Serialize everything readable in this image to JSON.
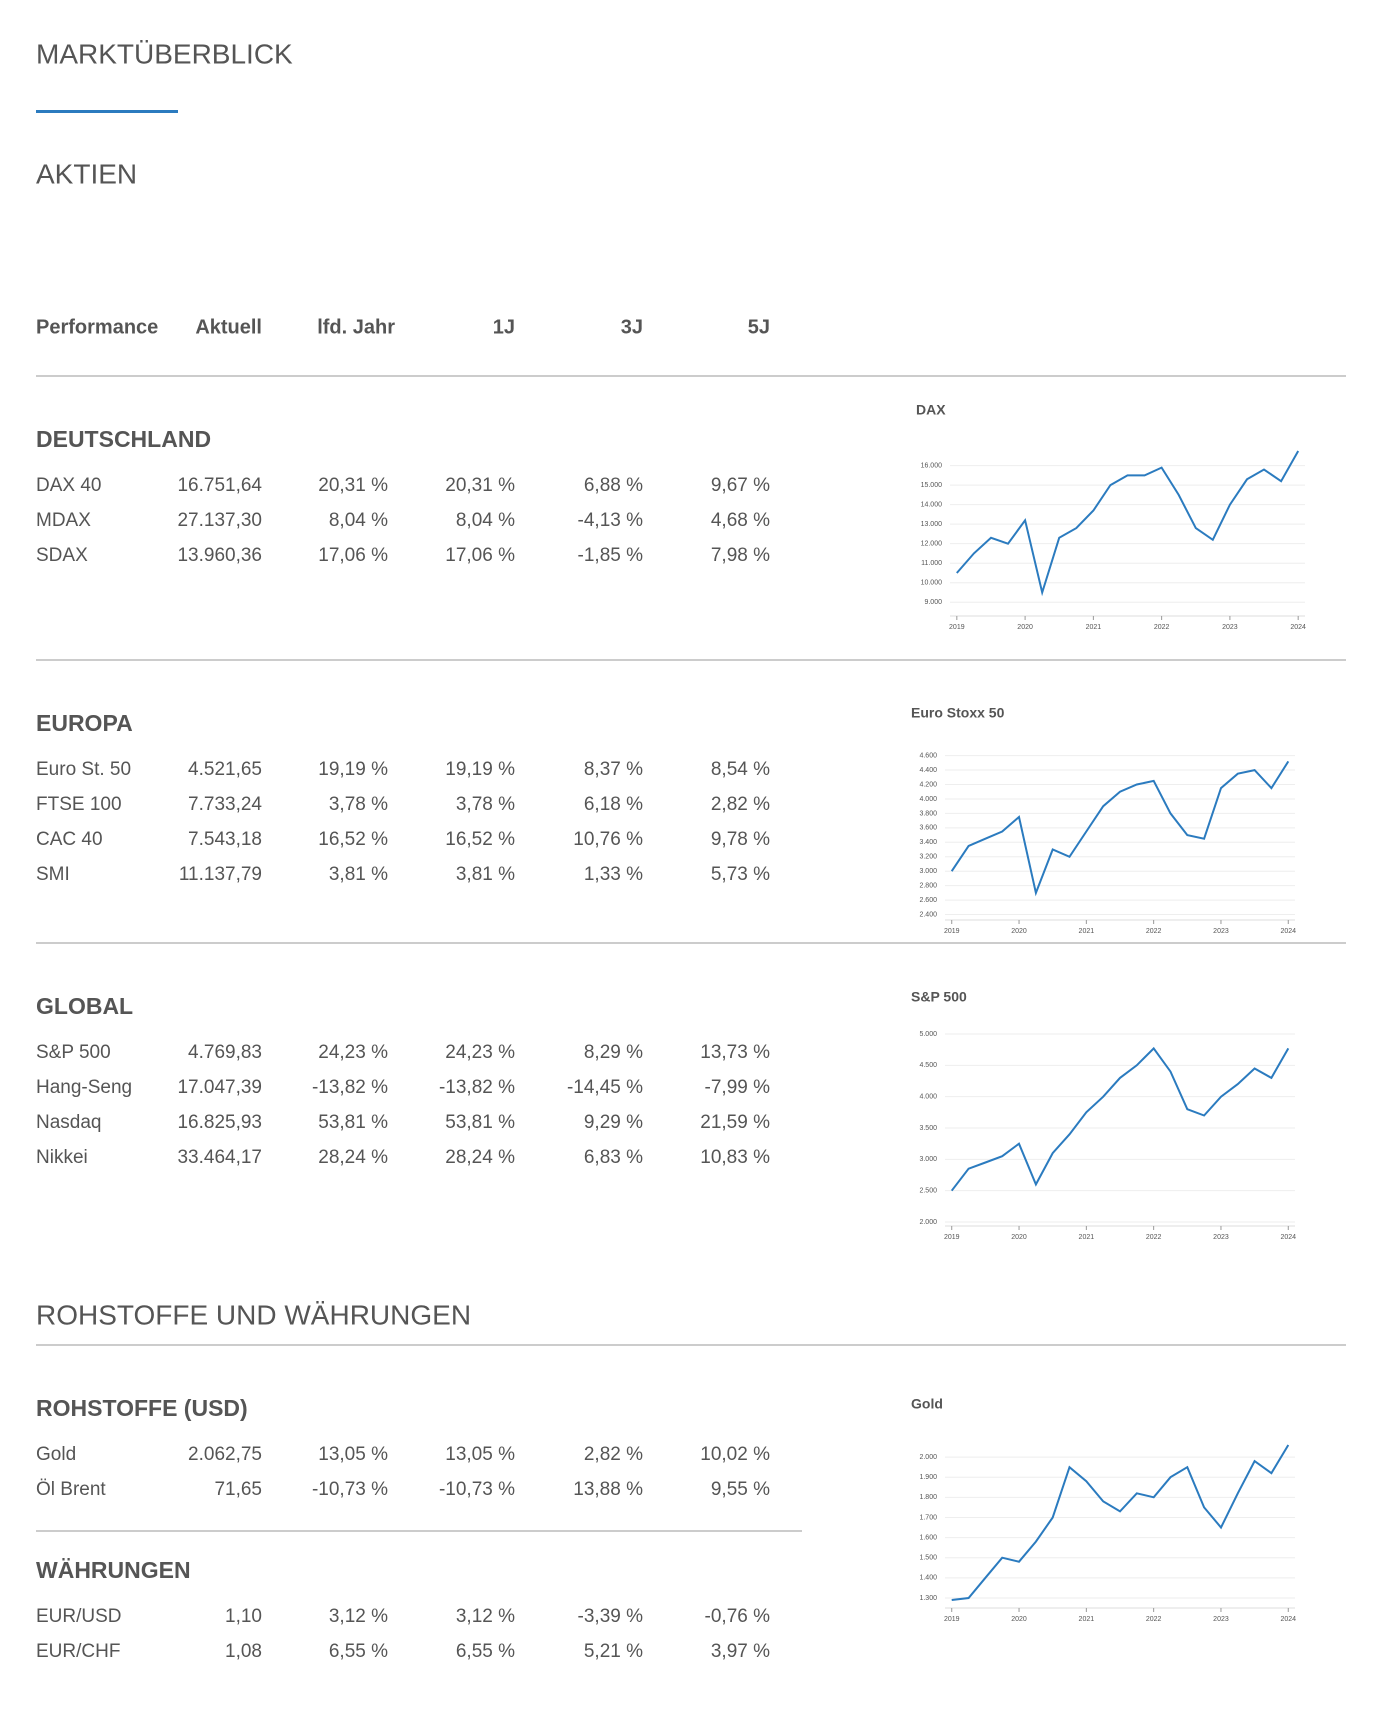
{
  "title": "MARKTÜBERBLICK",
  "sections": [
    {
      "title": "AKTIEN",
      "columns": [
        "Performance",
        "Aktuell",
        "lfd. Jahr",
        "1J",
        "3J",
        "5J"
      ],
      "groups": [
        {
          "name": "DEUTSCHLAND",
          "rows": [
            [
              "DAX 40",
              "16.751,64",
              "20,31 %",
              "20,31 %",
              "6,88 %",
              "9,67 %"
            ],
            [
              "MDAX",
              "27.137,30",
              "8,04 %",
              "8,04 %",
              "-4,13 %",
              "4,68 %"
            ],
            [
              "SDAX",
              "13.960,36",
              "17,06 %",
              "17,06 %",
              "-1,85 %",
              "7,98 %"
            ]
          ]
        },
        {
          "name": "EUROPA",
          "rows": [
            [
              "Euro St. 50",
              "4.521,65",
              "19,19 %",
              "19,19 %",
              "8,37 %",
              "8,54 %"
            ],
            [
              "FTSE 100",
              "7.733,24",
              "3,78 %",
              "3,78 %",
              "6,18 %",
              "2,82 %"
            ],
            [
              "CAC 40",
              "7.543,18",
              "16,52 %",
              "16,52 %",
              "10,76 %",
              "9,78 %"
            ],
            [
              "SMI",
              "11.137,79",
              "3,81 %",
              "3,81 %",
              "1,33 %",
              "5,73 %"
            ]
          ]
        },
        {
          "name": "GLOBAL",
          "rows": [
            [
              "S&P 500",
              "4.769,83",
              "24,23 %",
              "24,23 %",
              "8,29 %",
              "13,73 %"
            ],
            [
              "Hang-Seng",
              "17.047,39",
              "-13,82 %",
              "-13,82 %",
              "-14,45 %",
              "-7,99 %"
            ],
            [
              "Nasdaq",
              "16.825,93",
              "53,81 %",
              "53,81 %",
              "9,29 %",
              "21,59 %"
            ],
            [
              "Nikkei",
              "33.464,17",
              "28,24 %",
              "28,24 %",
              "6,83 %",
              "10,83 %"
            ]
          ]
        }
      ]
    },
    {
      "title": "ROHSTOFFE UND WÄHRUNGEN",
      "groups": [
        {
          "name": "ROHSTOFFE (USD)",
          "rows": [
            [
              "Gold",
              "2.062,75",
              "13,05 %",
              "13,05 %",
              "2,82 %",
              "10,02 %"
            ],
            [
              "Öl Brent",
              "71,65",
              "-10,73 %",
              "-10,73 %",
              "13,88 %",
              "9,55 %"
            ]
          ]
        },
        {
          "name": "WÄHRUNGEN",
          "rows": [
            [
              "EUR/USD",
              "1,10",
              "3,12 %",
              "3,12 %",
              "-3,39 %",
              "-0,76 %"
            ],
            [
              "EUR/CHF",
              "1,08",
              "6,55 %",
              "6,55 %",
              "5,21 %",
              "3,97 %"
            ]
          ]
        }
      ]
    }
  ],
  "chart_data": [
    {
      "type": "line",
      "title": "DAX",
      "color": "#2b7bbf",
      "grid": true,
      "x": [
        2019,
        2019.25,
        2019.5,
        2019.75,
        2020,
        2020.25,
        2020.5,
        2020.75,
        2021,
        2021.25,
        2021.5,
        2021.75,
        2022,
        2022.25,
        2022.5,
        2022.75,
        2023,
        2023.25,
        2023.5,
        2023.75,
        2024
      ],
      "values": [
        10500,
        11500,
        12300,
        12000,
        13200,
        9500,
        12300,
        12800,
        13700,
        15000,
        15500,
        15500,
        15900,
        14500,
        12800,
        12200,
        14000,
        15300,
        15800,
        15200,
        16750
      ],
      "xlim": [
        2018.9,
        2024.1
      ],
      "xticks": [
        2019,
        2020,
        2021,
        2022,
        2023,
        2024
      ],
      "ylim": [
        8500,
        16800
      ],
      "yticks": [
        {
          "value": 9000,
          "label": "9.000"
        },
        {
          "value": 10000,
          "label": "10.000"
        },
        {
          "value": 11000,
          "label": "11.000"
        },
        {
          "value": 12000,
          "label": "12.000"
        },
        {
          "value": 13000,
          "label": "13.000"
        },
        {
          "value": 14000,
          "label": "14.000"
        },
        {
          "value": 15000,
          "label": "15.000"
        },
        {
          "value": 16000,
          "label": "16.000"
        }
      ]
    },
    {
      "type": "line",
      "title": "Euro Stoxx 50",
      "color": "#2b7bbf",
      "grid": true,
      "x": [
        2019,
        2019.25,
        2019.5,
        2019.75,
        2020,
        2020.25,
        2020.5,
        2020.75,
        2021,
        2021.25,
        2021.5,
        2021.75,
        2022,
        2022.25,
        2022.5,
        2022.75,
        2023,
        2023.25,
        2023.5,
        2023.75,
        2024
      ],
      "values": [
        3000,
        3350,
        3450,
        3550,
        3750,
        2700,
        3300,
        3200,
        3550,
        3900,
        4100,
        4200,
        4250,
        3800,
        3500,
        3450,
        4150,
        4350,
        4400,
        4150,
        4520
      ],
      "xlim": [
        2018.9,
        2024.1
      ],
      "xticks": [
        2019,
        2020,
        2021,
        2022,
        2023,
        2024
      ],
      "ylim": [
        2380,
        4650
      ],
      "yticks": [
        {
          "value": 2400,
          "label": "2.400"
        },
        {
          "value": 2600,
          "label": "2.600"
        },
        {
          "value": 2800,
          "label": "2.800"
        },
        {
          "value": 3000,
          "label": "3.000"
        },
        {
          "value": 3200,
          "label": "3.200"
        },
        {
          "value": 3400,
          "label": "3.400"
        },
        {
          "value": 3600,
          "label": "3.600"
        },
        {
          "value": 3800,
          "label": "3.800"
        },
        {
          "value": 4000,
          "label": "4.000"
        },
        {
          "value": 4200,
          "label": "4.200"
        },
        {
          "value": 4400,
          "label": "4.400"
        },
        {
          "value": 4600,
          "label": "4.600"
        }
      ]
    },
    {
      "type": "line",
      "title": "S&P 500",
      "color": "#2b7bbf",
      "grid": true,
      "x": [
        2019,
        2019.25,
        2019.5,
        2019.75,
        2020,
        2020.25,
        2020.5,
        2020.75,
        2021,
        2021.25,
        2021.5,
        2021.75,
        2022,
        2022.25,
        2022.5,
        2022.75,
        2023,
        2023.25,
        2023.5,
        2023.75,
        2024
      ],
      "values": [
        2500,
        2850,
        2950,
        3050,
        3250,
        2600,
        3100,
        3400,
        3750,
        4000,
        4300,
        4500,
        4770,
        4400,
        3800,
        3700,
        4000,
        4200,
        4450,
        4300,
        4770
      ],
      "xlim": [
        2018.9,
        2024.1
      ],
      "xticks": [
        2019,
        2020,
        2021,
        2022,
        2023,
        2024
      ],
      "ylim": [
        2000,
        5000
      ],
      "yticks": [
        {
          "value": 2000,
          "label": "2.000"
        },
        {
          "value": 2500,
          "label": "2.500"
        },
        {
          "value": 3000,
          "label": "3.000"
        },
        {
          "value": 3500,
          "label": "3.500"
        },
        {
          "value": 4000,
          "label": "4.000"
        },
        {
          "value": 4500,
          "label": "4.500"
        },
        {
          "value": 5000,
          "label": "5.000"
        }
      ]
    },
    {
      "type": "line",
      "title": "Gold",
      "color": "#2b7bbf",
      "grid": true,
      "x": [
        2019,
        2019.25,
        2019.5,
        2019.75,
        2020,
        2020.25,
        2020.5,
        2020.75,
        2021,
        2021.25,
        2021.5,
        2021.75,
        2022,
        2022.25,
        2022.5,
        2022.75,
        2023,
        2023.25,
        2023.5,
        2023.75,
        2024
      ],
      "values": [
        1290,
        1300,
        1400,
        1500,
        1480,
        1580,
        1700,
        1950,
        1880,
        1780,
        1730,
        1820,
        1800,
        1900,
        1950,
        1750,
        1650,
        1820,
        1980,
        1920,
        2060
      ],
      "xlim": [
        2018.9,
        2024.1
      ],
      "xticks": [
        2019,
        2020,
        2021,
        2022,
        2023,
        2024
      ],
      "ylim": [
        1270,
        2080
      ],
      "yticks": [
        {
          "value": 1300,
          "label": "1.300"
        },
        {
          "value": 1400,
          "label": "1.400"
        },
        {
          "value": 1500,
          "label": "1.500"
        },
        {
          "value": 1600,
          "label": "1.600"
        },
        {
          "value": 1700,
          "label": "1.700"
        },
        {
          "value": 1800,
          "label": "1.800"
        },
        {
          "value": 1900,
          "label": "1.900"
        },
        {
          "value": 2000,
          "label": "2.000"
        }
      ]
    }
  ]
}
